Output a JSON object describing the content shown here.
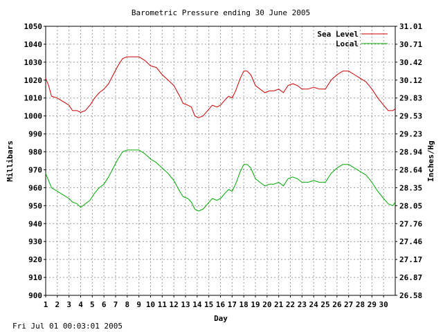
{
  "timestamp": "Fri Jul 01 00:03:01 2005",
  "chart_data": {
    "type": "line",
    "title": "Barometric Pressure ending 30 June 2005",
    "xlabel": "Day",
    "ylabel": "Millibars",
    "y2label": "Inches/Hg",
    "xlim": [
      1,
      31
    ],
    "ylim": [
      900,
      1050
    ],
    "x_ticks": [
      "1",
      "2",
      "3",
      "4",
      "5",
      "6",
      "7",
      "8",
      "9",
      "10",
      "11",
      "12",
      "13",
      "14",
      "15",
      "16",
      "17",
      "18",
      "19",
      "20",
      "21",
      "22",
      "23",
      "24",
      "25",
      "26",
      "27",
      "28",
      "29",
      "30"
    ],
    "y_ticks": [
      "1050",
      "1040",
      "1030",
      "1020",
      "1010",
      "1000",
      "990",
      "980",
      "970",
      "960",
      "950",
      "940",
      "930",
      "920",
      "910",
      "900"
    ],
    "y2_ticks": [
      "31.01",
      "30.71",
      "30.42",
      "30.12",
      "29.83",
      "29.53",
      "29.23",
      "28.94",
      "28.64",
      "28.35",
      "28.05",
      "27.76",
      "27.46",
      "27.17",
      "26.87",
      "26.58"
    ],
    "grid": true,
    "legend": "top-right",
    "series": [
      {
        "name": "Sea Level",
        "color": "#cc0000",
        "points": [
          [
            1.0,
            1021
          ],
          [
            1.25,
            1017
          ],
          [
            1.5,
            1011
          ],
          [
            2.0,
            1010
          ],
          [
            2.5,
            1008
          ],
          [
            3.0,
            1006
          ],
          [
            3.3,
            1003
          ],
          [
            3.7,
            1003
          ],
          [
            4.0,
            1002
          ],
          [
            4.4,
            1003
          ],
          [
            4.8,
            1006
          ],
          [
            5.2,
            1010
          ],
          [
            5.6,
            1013
          ],
          [
            6.0,
            1015
          ],
          [
            6.4,
            1018
          ],
          [
            6.8,
            1023
          ],
          [
            7.2,
            1028
          ],
          [
            7.6,
            1032
          ],
          [
            8.0,
            1033
          ],
          [
            8.5,
            1033
          ],
          [
            9.0,
            1033
          ],
          [
            9.5,
            1031
          ],
          [
            10.0,
            1028
          ],
          [
            10.5,
            1027
          ],
          [
            11.0,
            1023
          ],
          [
            11.5,
            1020
          ],
          [
            12.0,
            1017
          ],
          [
            12.5,
            1011
          ],
          [
            12.8,
            1007
          ],
          [
            13.2,
            1006
          ],
          [
            13.5,
            1005
          ],
          [
            13.8,
            1000
          ],
          [
            14.1,
            999
          ],
          [
            14.5,
            1000
          ],
          [
            14.9,
            1003
          ],
          [
            15.3,
            1006
          ],
          [
            15.7,
            1005
          ],
          [
            16.0,
            1006
          ],
          [
            16.4,
            1009
          ],
          [
            16.7,
            1011
          ],
          [
            17.0,
            1010
          ],
          [
            17.3,
            1014
          ],
          [
            17.7,
            1021
          ],
          [
            18.0,
            1025
          ],
          [
            18.3,
            1025
          ],
          [
            18.6,
            1023
          ],
          [
            19.0,
            1017
          ],
          [
            19.4,
            1015
          ],
          [
            19.8,
            1013
          ],
          [
            20.2,
            1014
          ],
          [
            20.6,
            1014
          ],
          [
            21.0,
            1015
          ],
          [
            21.4,
            1013
          ],
          [
            21.8,
            1017
          ],
          [
            22.2,
            1018
          ],
          [
            22.6,
            1017
          ],
          [
            23.0,
            1015
          ],
          [
            23.5,
            1015
          ],
          [
            24.0,
            1016
          ],
          [
            24.5,
            1015
          ],
          [
            25.0,
            1015
          ],
          [
            25.5,
            1020
          ],
          [
            26.0,
            1023
          ],
          [
            26.5,
            1025
          ],
          [
            27.0,
            1025
          ],
          [
            27.5,
            1023
          ],
          [
            28.0,
            1021
          ],
          [
            28.5,
            1019
          ],
          [
            29.0,
            1015
          ],
          [
            29.5,
            1010
          ],
          [
            30.0,
            1006
          ],
          [
            30.4,
            1003
          ],
          [
            30.8,
            1003
          ],
          [
            31.0,
            1004
          ]
        ]
      },
      {
        "name": "Local",
        "color": "#00aa00",
        "points": [
          [
            1.0,
            968
          ],
          [
            1.25,
            964
          ],
          [
            1.5,
            960
          ],
          [
            2.0,
            958
          ],
          [
            2.5,
            956
          ],
          [
            3.0,
            954
          ],
          [
            3.3,
            952
          ],
          [
            3.7,
            951
          ],
          [
            4.0,
            949
          ],
          [
            4.4,
            951
          ],
          [
            4.8,
            953
          ],
          [
            5.2,
            957
          ],
          [
            5.6,
            960
          ],
          [
            6.0,
            962
          ],
          [
            6.4,
            966
          ],
          [
            6.8,
            971
          ],
          [
            7.2,
            976
          ],
          [
            7.6,
            980
          ],
          [
            8.0,
            981
          ],
          [
            8.5,
            981
          ],
          [
            9.0,
            981
          ],
          [
            9.5,
            979
          ],
          [
            10.0,
            976
          ],
          [
            10.5,
            974
          ],
          [
            11.0,
            971
          ],
          [
            11.5,
            968
          ],
          [
            12.0,
            964
          ],
          [
            12.5,
            958
          ],
          [
            12.8,
            955
          ],
          [
            13.2,
            954
          ],
          [
            13.5,
            952
          ],
          [
            13.8,
            948
          ],
          [
            14.1,
            947
          ],
          [
            14.5,
            948
          ],
          [
            14.9,
            951
          ],
          [
            15.3,
            954
          ],
          [
            15.7,
            953
          ],
          [
            16.0,
            954
          ],
          [
            16.4,
            957
          ],
          [
            16.7,
            959
          ],
          [
            17.0,
            958
          ],
          [
            17.3,
            962
          ],
          [
            17.7,
            969
          ],
          [
            18.0,
            973
          ],
          [
            18.3,
            973
          ],
          [
            18.6,
            971
          ],
          [
            19.0,
            965
          ],
          [
            19.4,
            963
          ],
          [
            19.8,
            961
          ],
          [
            20.2,
            962
          ],
          [
            20.6,
            962
          ],
          [
            21.0,
            963
          ],
          [
            21.4,
            961
          ],
          [
            21.8,
            965
          ],
          [
            22.2,
            966
          ],
          [
            22.6,
            965
          ],
          [
            23.0,
            963
          ],
          [
            23.5,
            963
          ],
          [
            24.0,
            964
          ],
          [
            24.5,
            963
          ],
          [
            25.0,
            963
          ],
          [
            25.5,
            968
          ],
          [
            26.0,
            971
          ],
          [
            26.5,
            973
          ],
          [
            27.0,
            973
          ],
          [
            27.5,
            971
          ],
          [
            28.0,
            969
          ],
          [
            28.5,
            967
          ],
          [
            29.0,
            963
          ],
          [
            29.5,
            958
          ],
          [
            30.0,
            954
          ],
          [
            30.4,
            951
          ],
          [
            30.8,
            950
          ],
          [
            31.0,
            952
          ]
        ]
      }
    ]
  }
}
